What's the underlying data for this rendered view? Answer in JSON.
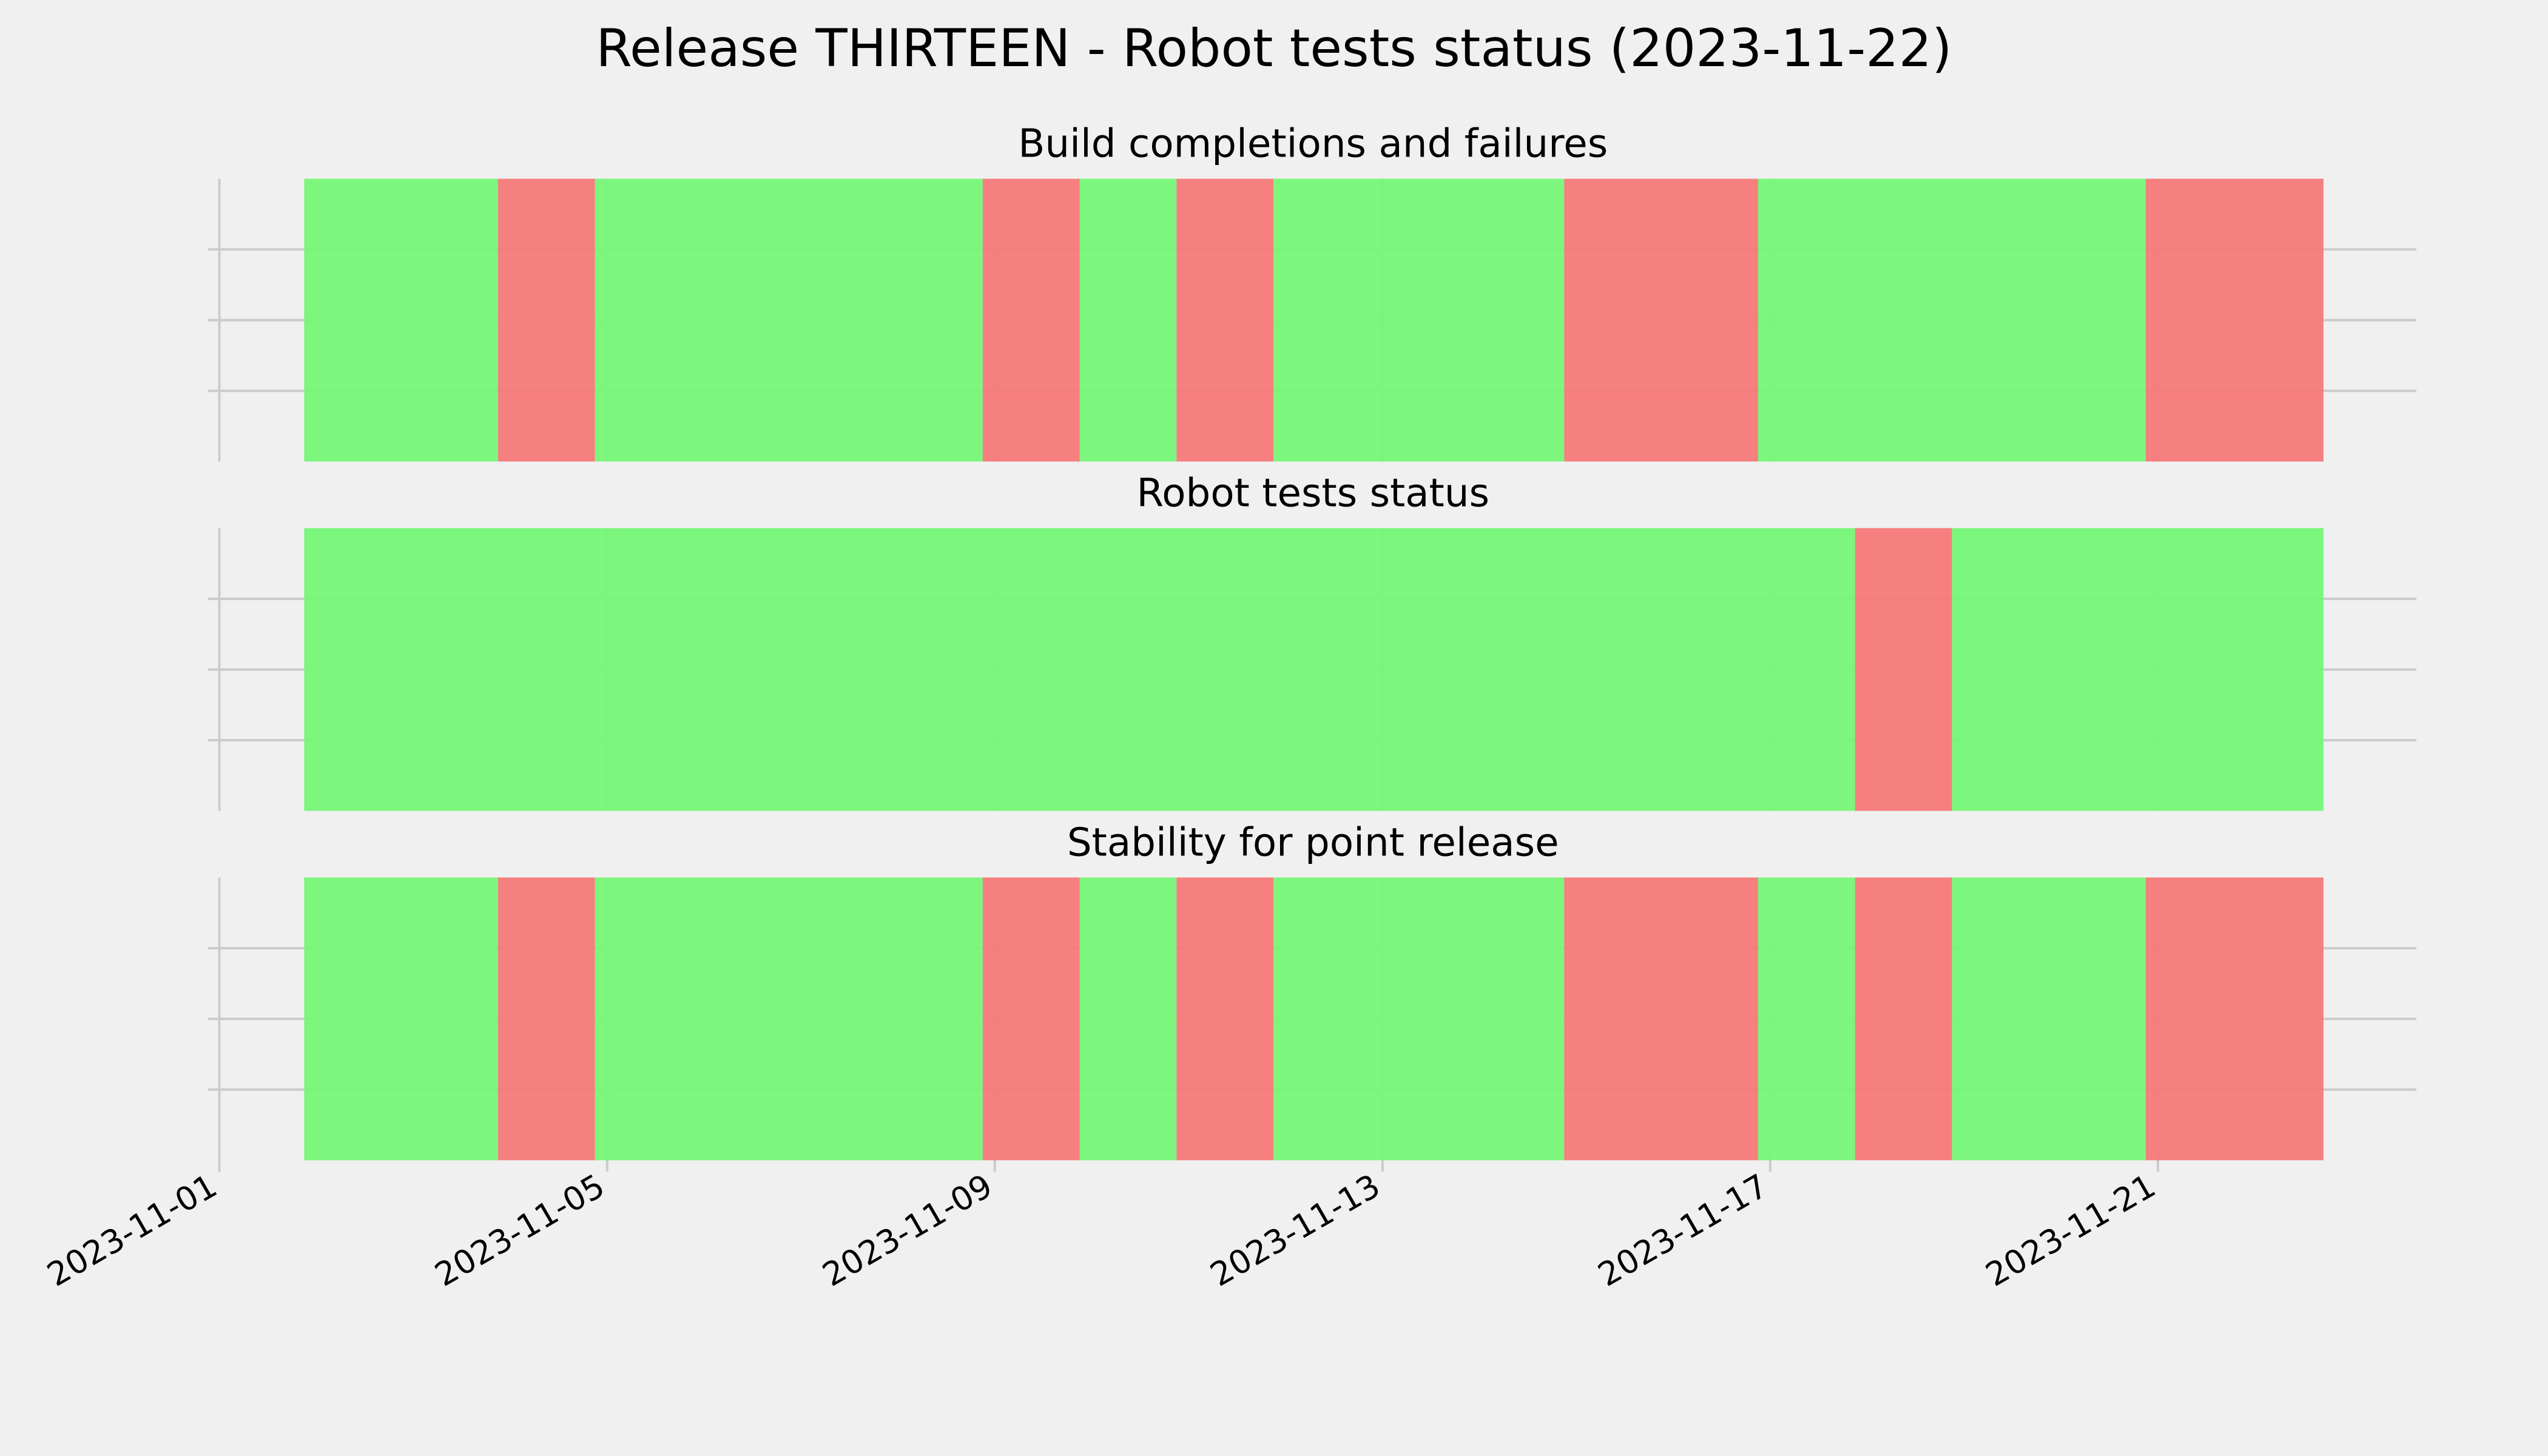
{
  "title": "Release THIRTEEN - Robot tests status (2023-11-22)",
  "chart_data": [
    {
      "type": "timeline",
      "title": "Build completions and failures",
      "xlim": [
        "2023-11-01T00:00",
        "2023-11-23T16:00"
      ],
      "xticks": [
        "2023-11-01",
        "2023-11-05",
        "2023-11-09",
        "2023-11-13",
        "2023-11-17",
        "2023-11-21"
      ],
      "ylim": [
        0,
        1
      ],
      "yticks": [
        0.25,
        0.5,
        0.75
      ],
      "grid": true,
      "spans": [
        {
          "start": "2023-11-01T21:00",
          "end": "2023-11-03T21:00",
          "color": "#74f674"
        },
        {
          "start": "2023-11-03T21:00",
          "end": "2023-11-04T21:00",
          "color": "#f67676"
        },
        {
          "start": "2023-11-04T21:00",
          "end": "2023-11-08T21:00",
          "color": "#74f674"
        },
        {
          "start": "2023-11-08T21:00",
          "end": "2023-11-09T21:00",
          "color": "#f67676"
        },
        {
          "start": "2023-11-09T21:00",
          "end": "2023-11-10T21:00",
          "color": "#74f674"
        },
        {
          "start": "2023-11-10T21:00",
          "end": "2023-11-11T21:00",
          "color": "#f67676"
        },
        {
          "start": "2023-11-11T21:00",
          "end": "2023-11-14T21:00",
          "color": "#74f674"
        },
        {
          "start": "2023-11-14T21:00",
          "end": "2023-11-16T21:00",
          "color": "#f67676"
        },
        {
          "start": "2023-11-16T21:00",
          "end": "2023-11-20T21:00",
          "color": "#74f674"
        },
        {
          "start": "2023-11-20T21:00",
          "end": "2023-11-22T17:00",
          "color": "#f67676"
        }
      ]
    },
    {
      "type": "timeline",
      "title": "Robot tests status",
      "xlim": [
        "2023-11-01T00:00",
        "2023-11-23T16:00"
      ],
      "xticks": [
        "2023-11-01",
        "2023-11-05",
        "2023-11-09",
        "2023-11-13",
        "2023-11-17",
        "2023-11-21"
      ],
      "ylim": [
        0,
        1
      ],
      "yticks": [
        0.25,
        0.5,
        0.75
      ],
      "grid": true,
      "spans": [
        {
          "start": "2023-11-01T21:00",
          "end": "2023-11-17T21:00",
          "color": "#74f674"
        },
        {
          "start": "2023-11-17T21:00",
          "end": "2023-11-18T21:00",
          "color": "#f67676"
        },
        {
          "start": "2023-11-18T21:00",
          "end": "2023-11-22T17:00",
          "color": "#74f674"
        }
      ]
    },
    {
      "type": "timeline",
      "title": "Stability for point release",
      "xlim": [
        "2023-11-01T00:00",
        "2023-11-23T16:00"
      ],
      "xticks": [
        "2023-11-01",
        "2023-11-05",
        "2023-11-09",
        "2023-11-13",
        "2023-11-17",
        "2023-11-21"
      ],
      "ylim": [
        0,
        1
      ],
      "yticks": [
        0.25,
        0.5,
        0.75
      ],
      "grid": true,
      "spans": [
        {
          "start": "2023-11-01T21:00",
          "end": "2023-11-03T21:00",
          "color": "#74f674"
        },
        {
          "start": "2023-11-03T21:00",
          "end": "2023-11-04T21:00",
          "color": "#f67676"
        },
        {
          "start": "2023-11-04T21:00",
          "end": "2023-11-08T21:00",
          "color": "#74f674"
        },
        {
          "start": "2023-11-08T21:00",
          "end": "2023-11-09T21:00",
          "color": "#f67676"
        },
        {
          "start": "2023-11-09T21:00",
          "end": "2023-11-10T21:00",
          "color": "#74f674"
        },
        {
          "start": "2023-11-10T21:00",
          "end": "2023-11-11T21:00",
          "color": "#f67676"
        },
        {
          "start": "2023-11-11T21:00",
          "end": "2023-11-14T21:00",
          "color": "#74f674"
        },
        {
          "start": "2023-11-14T21:00",
          "end": "2023-11-16T21:00",
          "color": "#f67676"
        },
        {
          "start": "2023-11-16T21:00",
          "end": "2023-11-17T21:00",
          "color": "#74f674"
        },
        {
          "start": "2023-11-17T21:00",
          "end": "2023-11-18T21:00",
          "color": "#f67676"
        },
        {
          "start": "2023-11-18T21:00",
          "end": "2023-11-20T21:00",
          "color": "#74f674"
        },
        {
          "start": "2023-11-20T21:00",
          "end": "2023-11-22T17:00",
          "color": "#f67676"
        }
      ]
    }
  ]
}
